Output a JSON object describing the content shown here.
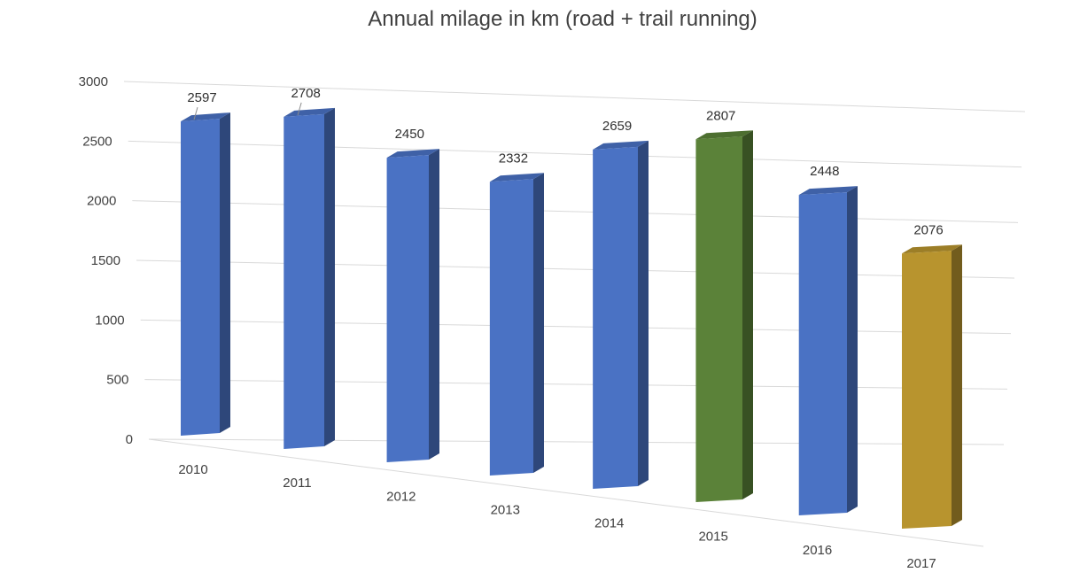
{
  "chart_data": {
    "type": "bar",
    "title": "Annual milage in km (road + trail running)",
    "xlabel": "",
    "ylabel": "",
    "categories": [
      "2010",
      "2011",
      "2012",
      "2013",
      "2014",
      "2015",
      "2016",
      "2017"
    ],
    "values": [
      2597,
      2708,
      2450,
      2332,
      2659,
      2807,
      2448,
      2076
    ],
    "ylim": [
      0,
      3000
    ],
    "yticks": [
      0,
      500,
      1000,
      1500,
      2000,
      2500,
      3000
    ],
    "grid": true,
    "legend": "none",
    "bar_colors": [
      "#4a72c4",
      "#4a72c4",
      "#4a72c4",
      "#4a72c4",
      "#4a72c4",
      "#5b8239",
      "#4a72c4",
      "#b8942e"
    ]
  }
}
